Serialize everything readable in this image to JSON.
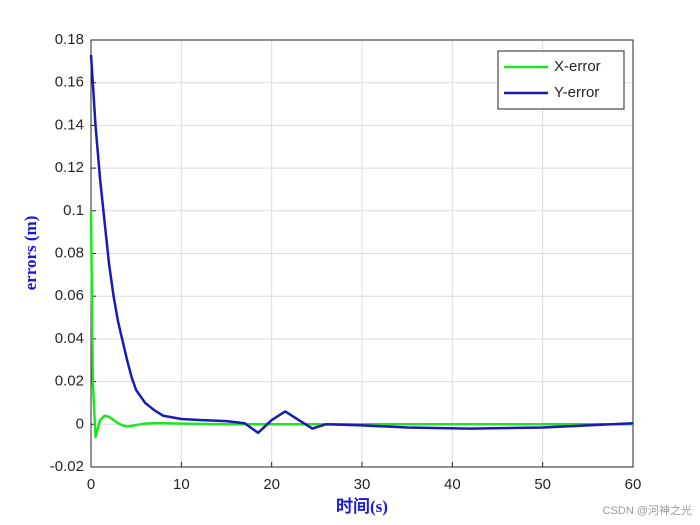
{
  "chart_data": {
    "type": "line",
    "x_label": "时间(s)",
    "y_label": "errors (m)",
    "x": [
      0,
      0.2,
      0.5,
      1,
      1.5,
      2,
      2.5,
      3,
      3.5,
      4,
      4.5,
      5,
      6,
      7,
      8,
      10,
      12,
      15,
      17,
      18.5,
      20,
      21.5,
      23,
      24.5,
      26,
      30,
      35,
      42,
      50,
      55,
      60
    ],
    "series": [
      {
        "name": "X-error",
        "color": "#1ee61e",
        "values": [
          0.1,
          0.02,
          -0.006,
          0.002,
          0.004,
          0.0035,
          0.002,
          0.0005,
          -0.0005,
          -0.001,
          -0.0008,
          -0.0003,
          0.0003,
          0.0005,
          0.0005,
          0.0003,
          0.0002,
          0,
          0,
          0,
          0,
          0,
          0,
          0,
          0,
          0,
          0,
          0,
          0,
          0,
          0
        ]
      },
      {
        "name": "Y-error",
        "color": "#1a1ab4",
        "values": [
          0.173,
          0.16,
          0.14,
          0.115,
          0.095,
          0.075,
          0.06,
          0.048,
          0.039,
          0.03,
          0.022,
          0.016,
          0.01,
          0.0066,
          0.004,
          0.0025,
          0.002,
          0.0015,
          0.0005,
          -0.004,
          0.002,
          0.006,
          0.002,
          -0.002,
          0,
          -0.0005,
          -0.0015,
          -0.002,
          -0.0015,
          -0.0005,
          0.0005
        ]
      }
    ],
    "xlim": [
      0,
      60
    ],
    "xticks": [
      0,
      10,
      20,
      30,
      40,
      50,
      60
    ],
    "ylim": [
      -0.02,
      0.18
    ],
    "yticks": [
      -0.02,
      0,
      0.02,
      0.04,
      0.06,
      0.08,
      0.1,
      0.12,
      0.14,
      0.16,
      0.18
    ],
    "grid": true,
    "legend_position": "upper-right"
  },
  "watermark": "CSDN @河神之光"
}
